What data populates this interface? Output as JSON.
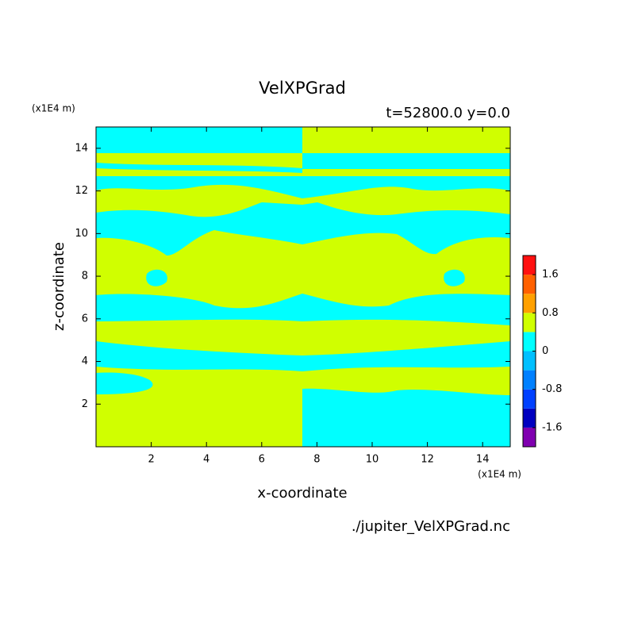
{
  "chart_data": {
    "type": "contour",
    "title": "VelXPGrad",
    "subtitle": "t=52800.0 y=0.0",
    "x_label": "x-coordinate",
    "y_label": "z-coordinate",
    "x_unit": "(x1E4 m)",
    "y_unit": "(x1E4 m)",
    "source": "./jupiter_VelXPGrad.nc",
    "xlim": [
      0,
      15
    ],
    "xticks": [
      2,
      4,
      6,
      8,
      10,
      12,
      14
    ],
    "ylim": [
      0,
      15
    ],
    "yticks": [
      2,
      4,
      6,
      8,
      10,
      12,
      14
    ],
    "colorbar": {
      "levels": [
        -2,
        -1.6,
        -1.2,
        -0.8,
        -0.4,
        0,
        0.4,
        0.8,
        1.2,
        1.6,
        2
      ],
      "colors": [
        "#8000b0",
        "#0000c0",
        "#0040ff",
        "#0080ff",
        "#00c0ff",
        "#00ffff",
        "#d0ff00",
        "#ffa000",
        "#ff6000",
        "#ff1010",
        "#ffb0b0"
      ],
      "ticks": [
        -1.6,
        -0.8,
        0,
        0.8,
        1.6
      ]
    }
  }
}
